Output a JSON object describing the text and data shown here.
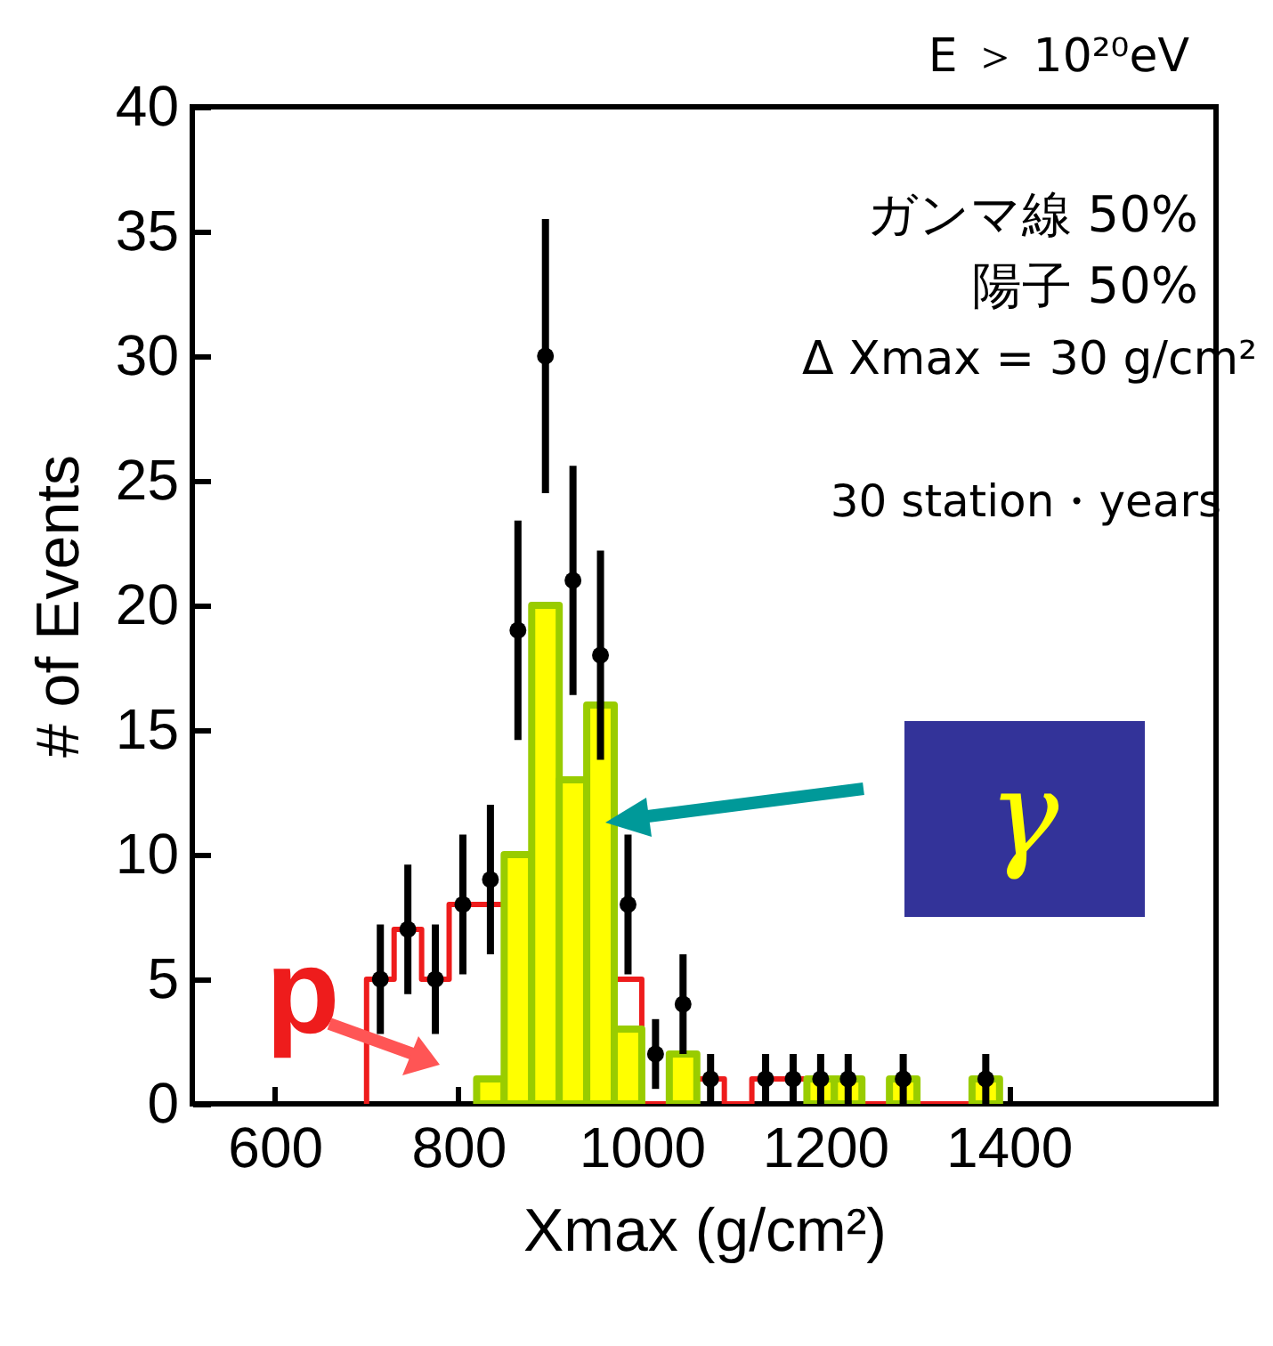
{
  "chart_data": {
    "type": "histogram",
    "xlabel": "Xmax (g/cm²)",
    "ylabel": "# of Events",
    "annotations": [
      "E ＞ 10²⁰eV",
      "ガンマ線  50%",
      "陽子        50%",
      "Δ Xmax = 30 g/cm²",
      "30 station・years"
    ],
    "bins": [
      700,
      730,
      760,
      790,
      820,
      850,
      880,
      910,
      940,
      970,
      1000,
      1030,
      1060,
      1090,
      1120,
      1150,
      1180,
      1210,
      1240,
      1270,
      1300,
      1330,
      1360,
      1390
    ],
    "series": [
      {
        "name": "p",
        "type": "histogram",
        "color": "#ee1c1c",
        "values": [
          5,
          7,
          5,
          8,
          8,
          9,
          10,
          8,
          2,
          5,
          0,
          0,
          1,
          0,
          1,
          1,
          0,
          0,
          0,
          0,
          0,
          0,
          0
        ]
      },
      {
        "name": "γ",
        "type": "histogram",
        "color": "#99cc00",
        "colors": [
          "#ffff00",
          "#ffff00",
          "#ffff00",
          "#ffff00",
          "#ffff00",
          "#ffff00",
          "#ffff00",
          "#ffff00",
          "#ffff00",
          "#ffff00",
          "#ffff00",
          "#ffff00",
          "#ffff00",
          "#ffff00",
          "#ffff00",
          "#ffff00",
          "#ffff00",
          "#ffff00",
          "#ffff00",
          "#ffff00",
          "#ffff00",
          "#ffff00",
          "#ffff00"
        ],
        "values": [
          0,
          0,
          0,
          0,
          1,
          10,
          20,
          13,
          16,
          3,
          0,
          2,
          0,
          0,
          0,
          0,
          1,
          1,
          0,
          1,
          0,
          0,
          1
        ]
      },
      {
        "type": "scatter",
        "color": "#000000",
        "x": [
          715,
          745,
          775,
          805,
          835,
          865,
          895,
          925,
          955,
          985,
          1015,
          1045,
          1075,
          1135,
          1165,
          1195,
          1225,
          1285,
          1375
        ],
        "values": [
          5,
          7,
          5,
          8,
          9,
          19,
          30,
          21,
          18,
          8,
          2,
          4,
          1,
          1,
          1,
          1,
          1,
          1,
          1
        ],
        "errors": [
          2.2,
          2.6,
          2.2,
          2.8,
          3,
          4.4,
          5.5,
          4.6,
          4.2,
          2.8,
          1.4,
          2,
          1,
          1,
          1,
          1,
          1,
          1,
          1
        ]
      }
    ],
    "xlim": [
      510,
      1626
    ],
    "ylim": [
      0,
      40
    ],
    "xticks": [
      600,
      800,
      1000,
      1200,
      1400
    ],
    "yticks": [
      0,
      5,
      10,
      15,
      20,
      25,
      30,
      35,
      40
    ],
    "marker": "circle",
    "grid": false
  }
}
